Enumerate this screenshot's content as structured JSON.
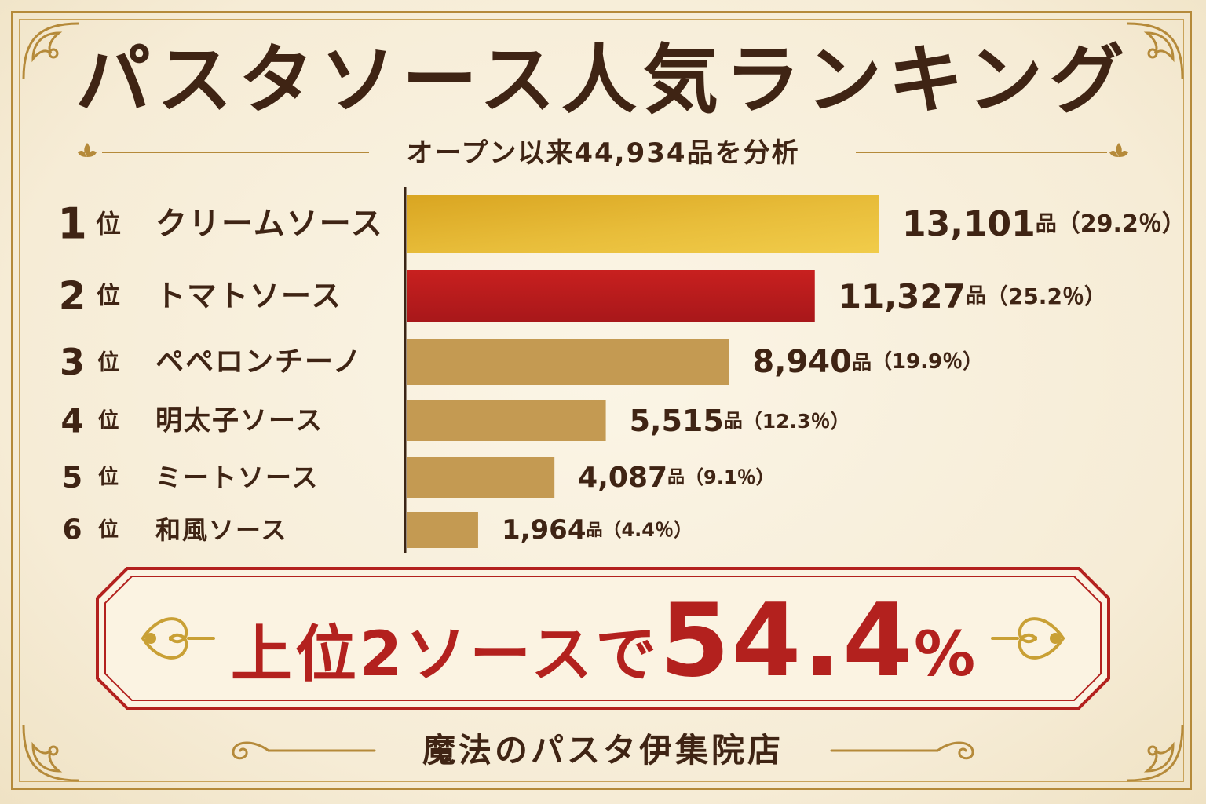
{
  "title": "パスタソース人気ランキング",
  "subtitle": "オープン以来44,934品を分析",
  "chart_data": {
    "type": "bar",
    "orientation": "horizontal",
    "rank_suffix": "位",
    "unit": "品",
    "categories": [
      "クリームソース",
      "トマトソース",
      "ペペロンチーノ",
      "明太子ソース",
      "ミートソース",
      "和風ソース"
    ],
    "ranks": [
      "1",
      "2",
      "3",
      "4",
      "5",
      "6"
    ],
    "values": [
      13101,
      11327,
      8940,
      5515,
      4087,
      1964
    ],
    "value_labels": [
      "13,101",
      "11,327",
      "8,940",
      "5,515",
      "4,087",
      "1,964"
    ],
    "percent_labels": [
      "（29.2％）",
      "（25.2％）",
      "（19.9％）",
      "（12.3％）",
      "（9.1％）",
      "（4.4％）"
    ],
    "bar_colors": [
      "#e2b32c",
      "#c01c1f",
      "#c49a52",
      "#c49a52",
      "#c49a52",
      "#c49a52"
    ]
  },
  "highlight": {
    "prefix": "上位2ソースで",
    "value": "54.4",
    "sign": "%"
  },
  "footer": "魔法のパスタ伊集院店",
  "colors": {
    "background": "#f6eedb",
    "frame_gold": "#b58a3a",
    "text_brown": "#3f2414",
    "accent_red": "#b3211e"
  }
}
